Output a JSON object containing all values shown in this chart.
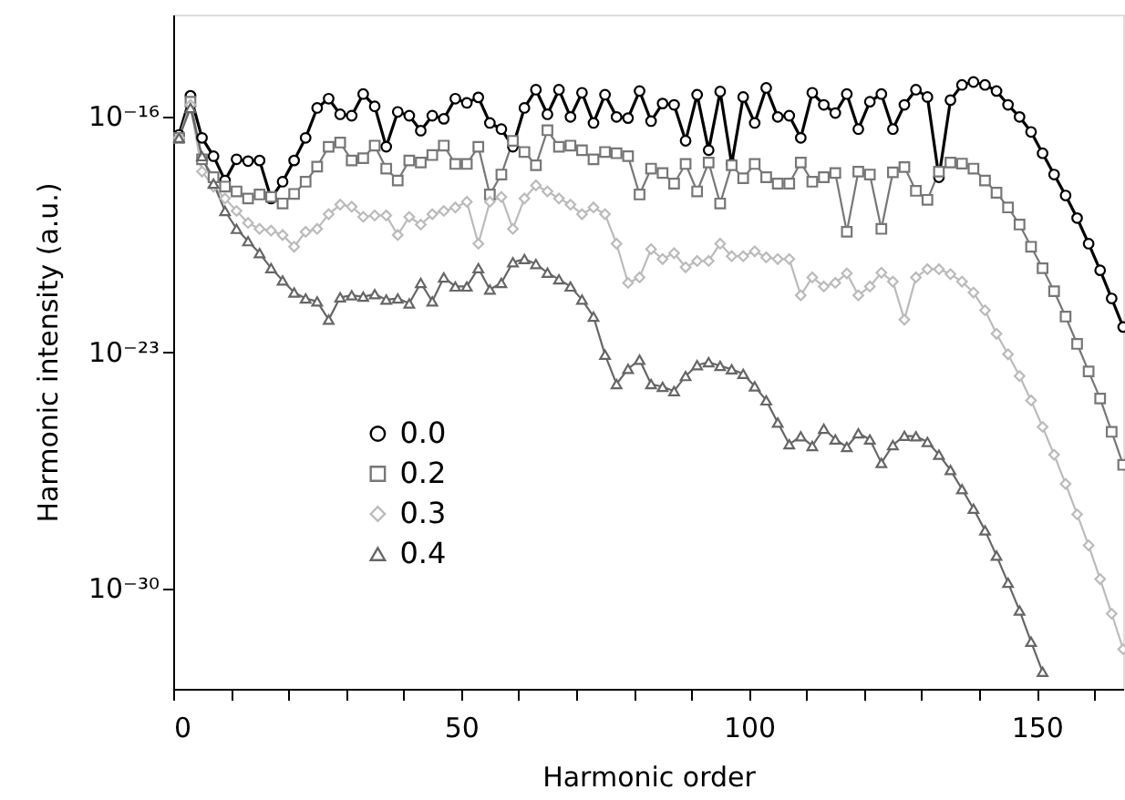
{
  "chart_data": {
    "type": "line",
    "xlabel": "Harmonic order",
    "ylabel": "Harmonic intensity (a.u.)",
    "x": [
      1,
      3,
      5,
      7,
      9,
      11,
      13,
      15,
      17,
      19,
      21,
      23,
      25,
      27,
      29,
      31,
      33,
      35,
      37,
      39,
      41,
      43,
      45,
      47,
      49,
      51,
      53,
      55,
      57,
      59,
      61,
      63,
      65,
      67,
      69,
      71,
      73,
      75,
      77,
      79,
      81,
      83,
      85,
      87,
      89,
      91,
      93,
      95,
      97,
      99,
      101,
      103,
      105,
      107,
      109,
      111,
      113,
      115,
      117,
      119,
      121,
      123,
      125,
      127,
      129,
      131,
      133,
      135,
      137,
      139,
      141,
      143,
      145,
      147,
      149,
      151,
      153,
      155,
      157,
      159,
      161,
      163,
      165
    ],
    "xlim": [
      0,
      165
    ],
    "xticks": [
      0,
      {
        "value": 10,
        "label": null
      },
      {
        "value": 20,
        "label": null
      },
      {
        "value": 30,
        "label": null
      },
      {
        "value": 40,
        "label": null
      },
      50,
      {
        "value": 60,
        "label": null
      },
      {
        "value": 70,
        "label": null
      },
      {
        "value": 80,
        "label": null
      },
      {
        "value": 90,
        "label": null
      },
      100,
      {
        "value": 110,
        "label": null
      },
      {
        "value": 120,
        "label": null
      },
      {
        "value": 130,
        "label": null
      },
      {
        "value": 140,
        "label": null
      },
      150,
      {
        "value": 160,
        "label": null
      }
    ],
    "ylim": [
      1e-33,
      1e-13
    ],
    "yticks": [
      {
        "value": 1e-16,
        "label": "10⁻¹⁶"
      },
      {
        "value": 1e-23,
        "label": "10⁻²³"
      },
      {
        "value": 1e-30,
        "label": "10⁻³⁰"
      }
    ],
    "log": true,
    "grid": false,
    "legend": "bottom left",
    "line_style": "solid",
    "series": [
      {
        "name": "0.0",
        "color": "#000000",
        "marker": "circle",
        "values": [
          2.7e-17,
          3.9e-16,
          2.2e-17,
          6.3e-18,
          1.2e-18,
          5.1e-18,
          4.5e-18,
          4.7e-18,
          3.5e-19,
          1.1e-18,
          4.7e-18,
          2.2e-17,
          1.7e-16,
          3.2e-16,
          1.1e-16,
          1e-16,
          4.4e-16,
          1.9e-16,
          1.2e-17,
          1.3e-16,
          1e-16,
          3.6e-17,
          1e-16,
          8.1e-17,
          3.2e-16,
          2.4e-16,
          3.5e-16,
          6.1e-17,
          4e-17,
          1.2e-17,
          1.7e-16,
          5.9e-16,
          1.1e-16,
          5.9e-16,
          9.2e-17,
          4.8e-16,
          6.1e-17,
          4.2e-16,
          9.2e-17,
          8.5e-17,
          5.4e-16,
          6.9e-17,
          2.3e-16,
          2.1e-16,
          1.8e-17,
          4.2e-16,
          9.5e-18,
          5.2e-16,
          3.7e-18,
          3.6e-16,
          6.1e-17,
          6.7e-16,
          9.2e-17,
          1e-16,
          2.2e-17,
          4.8e-16,
          2.1e-16,
          1.2e-16,
          4.4e-16,
          4e-17,
          2.6e-16,
          4.4e-16,
          4e-17,
          2.1e-16,
          5.9e-16,
          3.6e-16,
          1.5e-18,
          2.9e-16,
          8.2e-16,
          1e-15,
          8.2e-16,
          5.4e-16,
          2.1e-16,
          9.2e-17,
          3.3e-17,
          7.7e-18,
          1.8e-18,
          4.3e-19,
          9.2e-20,
          1.6e-20,
          2.6e-21,
          3.8e-22,
          5.4e-23
        ]
      },
      {
        "name": "0.2",
        "color": "#777777",
        "marker": "square",
        "values": [
          2.2e-17,
          2.6e-16,
          5.1e-18,
          1.5e-18,
          7.9e-19,
          5.7e-19,
          3.5e-19,
          4.6e-19,
          3.9e-19,
          2.5e-19,
          4.8e-19,
          1.1e-18,
          3.1e-18,
          1.2e-17,
          1.6e-17,
          4.7e-18,
          5.5e-18,
          1.3e-17,
          2.7e-18,
          1.2e-18,
          4.7e-18,
          4.1e-18,
          6.8e-18,
          1.3e-17,
          3.7e-18,
          3.7e-18,
          1.2e-17,
          4.6e-19,
          1.8e-18,
          1.8e-17,
          8.4e-18,
          3.4e-18,
          3.7e-17,
          1.2e-17,
          1.3e-17,
          9.5e-18,
          5.1e-18,
          8.4e-18,
          7.7e-18,
          6.3e-18,
          4.6e-19,
          2.7e-18,
          2e-18,
          9.7e-19,
          3.7e-18,
          5.7e-19,
          4.1e-18,
          2.5e-19,
          3.4e-18,
          1.4e-18,
          3.7e-18,
          1.5e-18,
          9.7e-19,
          9.7e-19,
          4.1e-18,
          1.1e-18,
          1.5e-18,
          2e-18,
          3.6e-20,
          2.2e-18,
          1.8e-18,
          4.4e-20,
          2.1e-18,
          3e-18,
          5.9e-19,
          3.2e-19,
          2.2e-18,
          4.1e-18,
          3.8e-18,
          2.7e-18,
          1.2e-18,
          5.2e-19,
          1.9e-19,
          5.9e-20,
          1.3e-20,
          3e-21,
          6.2e-22,
          1.1e-22,
          1.7e-23,
          2.6e-24,
          4.1e-25,
          4.2e-26,
          4.4e-27
        ]
      },
      {
        "name": "0.3",
        "color": "#bbbbbb",
        "marker": "diamond",
        "values": [
          2.2e-17,
          2.1e-16,
          2.2e-18,
          7.9e-19,
          3.5e-19,
          1.5e-19,
          6.6e-20,
          4.4e-20,
          3.9e-20,
          2.9e-20,
          1.3e-20,
          3.6e-20,
          4.4e-20,
          1.2e-19,
          2.3e-19,
          2e-19,
          1e-19,
          1.1e-19,
          1.1e-19,
          2.9e-20,
          1e-19,
          5.9e-20,
          1.2e-19,
          1.5e-19,
          1.9e-19,
          2.8e-19,
          1.6e-20,
          2.8e-19,
          3.9e-19,
          4.4e-20,
          3.5e-19,
          8.6e-19,
          5.7e-19,
          3.5e-19,
          2.3e-19,
          1.2e-19,
          1.9e-19,
          1.2e-19,
          1.6e-20,
          1.1e-21,
          1.6e-21,
          1.1e-20,
          5.6e-21,
          8.4e-21,
          3.2e-21,
          4.9e-21,
          4.9e-21,
          1.6e-20,
          6.8e-21,
          6.8e-21,
          9.5e-21,
          6.3e-21,
          5.6e-21,
          5.6e-21,
          4.7e-22,
          1.6e-21,
          8.6e-22,
          1.1e-21,
          2.1e-21,
          4.7e-22,
          8.6e-22,
          2.2e-21,
          1.2e-21,
          8.9e-23,
          1.6e-21,
          2.8e-21,
          2.8e-21,
          2e-21,
          1.2e-21,
          5.7e-22,
          1.7e-22,
          3.4e-23,
          8.4e-24,
          1.9e-24,
          3.6e-25,
          5.9e-26,
          8.8e-27,
          1.2e-27,
          1.5e-28,
          1.8e-29,
          1.8e-30,
          1.7e-31,
          1.5e-32
        ]
      },
      {
        "name": "0.4",
        "color": "#666666",
        "marker": "triangle",
        "x": [
          1,
          3,
          5,
          7,
          9,
          11,
          13,
          15,
          17,
          19,
          21,
          23,
          25,
          27,
          29,
          31,
          33,
          35,
          37,
          39,
          41,
          43,
          45,
          47,
          49,
          51,
          53,
          55,
          57,
          59,
          61,
          63,
          65,
          67,
          69,
          71,
          73,
          75,
          77,
          79,
          81,
          83,
          85,
          87,
          89,
          91,
          93,
          95,
          97,
          99,
          101,
          103,
          105,
          107,
          109,
          111,
          113,
          115,
          117,
          119,
          121,
          123,
          125,
          127,
          129,
          131,
          133,
          135,
          137,
          139,
          141,
          143,
          145,
          147,
          149,
          151
        ],
        "values": [
          2.2e-17,
          1.7e-16,
          6.3e-18,
          9.7e-19,
          1.5e-19,
          4.4e-20,
          1.9e-20,
          8.4e-21,
          3e-21,
          1.3e-21,
          5.7e-22,
          3.8e-22,
          3.1e-22,
          8.9e-23,
          4.1e-22,
          4.7e-22,
          4.3e-22,
          5.1e-22,
          3.5e-22,
          3.8e-22,
          2.7e-22,
          1.1e-21,
          3.1e-22,
          1.6e-21,
          8.6e-22,
          8.6e-22,
          3e-21,
          7e-22,
          1.1e-21,
          4.5e-21,
          5.6e-21,
          4e-21,
          2.2e-21,
          1.4e-21,
          8.6e-22,
          3.5e-22,
          1.1e-22,
          8.1e-24,
          1.1e-24,
          3.1e-24,
          5.8e-24,
          1.1e-24,
          9.1e-25,
          6.8e-25,
          1.9e-24,
          4e-24,
          4.9e-24,
          3.8e-24,
          3e-24,
          2.2e-24,
          9.4e-25,
          3.6e-25,
          7.9e-26,
          1.8e-26,
          3.1e-26,
          1.6e-26,
          5.2e-26,
          2.5e-26,
          1.5e-26,
          3.8e-26,
          2.5e-26,
          5e-27,
          1.7e-26,
          3.2e-26,
          3.1e-26,
          2.1e-26,
          8.8e-27,
          3.1e-27,
          8.4e-28,
          2.2e-28,
          5e-29,
          8.9e-30,
          1.4e-30,
          2.1e-31,
          2.5e-32,
          3.2e-33
        ]
      }
    ]
  }
}
